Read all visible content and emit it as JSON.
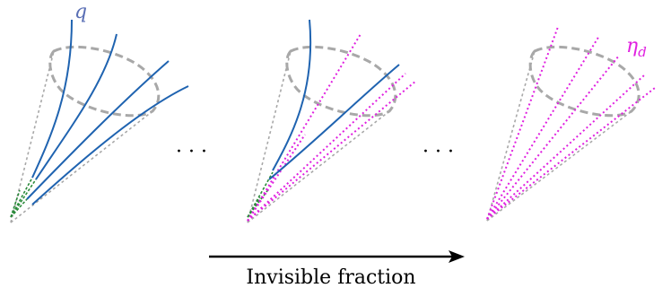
{
  "labels": {
    "quark": "q",
    "dark_meson": "η",
    "dark_meson_sub": "d",
    "ellipsis_1": "· · ·",
    "ellipsis_2": "· · ·",
    "arrow_caption": "Invisible fraction"
  },
  "colors": {
    "visible_jet": "#1f63b0",
    "invisible_jet": "#e020e0",
    "cone": "#a8a8a8",
    "origin_shower": "#2a8a3a",
    "quark_label": "#5a6fb5",
    "arrow": "#000000",
    "text": "#000000"
  },
  "panels": [
    {
      "name": "all-visible",
      "visible_tracks": 4,
      "invisible_tracks": 0
    },
    {
      "name": "partially-invisible",
      "visible_tracks": 2,
      "invisible_tracks": 3
    },
    {
      "name": "all-invisible",
      "visible_tracks": 0,
      "invisible_tracks": 5
    }
  ]
}
